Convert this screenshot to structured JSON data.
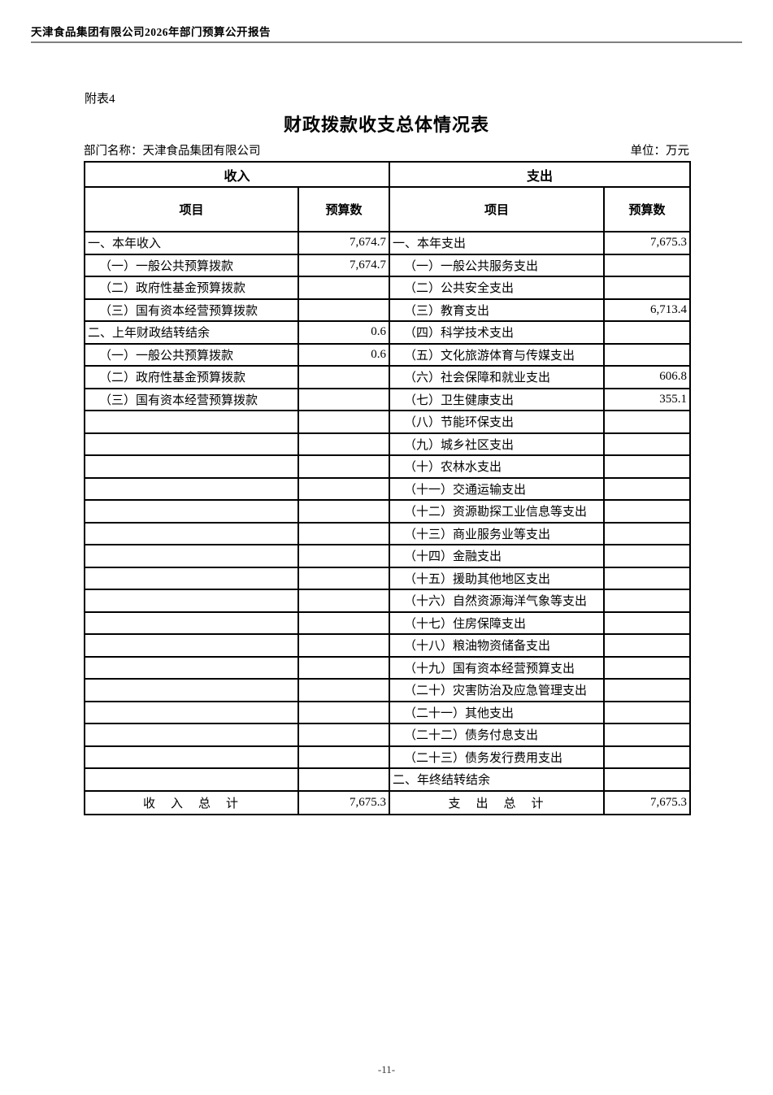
{
  "page": {
    "report_header": "天津食品集团有限公司2026年部门预算公开报告",
    "attachment_label": "附表4",
    "title": "财政拨款收支总体情况表",
    "department_label": "部门名称：天津食品集团有限公司",
    "unit_label": "单位：万元",
    "page_number": "-11-"
  },
  "table": {
    "income_header": "收入",
    "expense_header": "支出",
    "item_header": "项目",
    "budget_header": "预算数",
    "rows": [
      {
        "income_item": "一、本年收入",
        "income_value": "7,674.7",
        "expense_item": "一、本年支出",
        "expense_value": "7,675.3"
      },
      {
        "income_item": "（一）一般公共预算拨款",
        "income_value": "7,674.7",
        "expense_item": "（一）一般公共服务支出",
        "expense_value": ""
      },
      {
        "income_item": "（二）政府性基金预算拨款",
        "income_value": "",
        "expense_item": "（二）公共安全支出",
        "expense_value": ""
      },
      {
        "income_item": "（三）国有资本经营预算拨款",
        "income_value": "",
        "expense_item": "（三）教育支出",
        "expense_value": "6,713.4"
      },
      {
        "income_item": "二、上年财政结转结余",
        "income_value": "0.6",
        "expense_item": "（四）科学技术支出",
        "expense_value": ""
      },
      {
        "income_item": "（一）一般公共预算拨款",
        "income_value": "0.6",
        "expense_item": "（五）文化旅游体育与传媒支出",
        "expense_value": ""
      },
      {
        "income_item": "（二）政府性基金预算拨款",
        "income_value": "",
        "expense_item": "（六）社会保障和就业支出",
        "expense_value": "606.8"
      },
      {
        "income_item": "（三）国有资本经营预算拨款",
        "income_value": "",
        "expense_item": "（七）卫生健康支出",
        "expense_value": "355.1"
      },
      {
        "income_item": "",
        "income_value": "",
        "expense_item": "（八）节能环保支出",
        "expense_value": ""
      },
      {
        "income_item": "",
        "income_value": "",
        "expense_item": "（九）城乡社区支出",
        "expense_value": ""
      },
      {
        "income_item": "",
        "income_value": "",
        "expense_item": "（十）农林水支出",
        "expense_value": ""
      },
      {
        "income_item": "",
        "income_value": "",
        "expense_item": "（十一）交通运输支出",
        "expense_value": ""
      },
      {
        "income_item": "",
        "income_value": "",
        "expense_item": "（十二）资源勘探工业信息等支出",
        "expense_value": ""
      },
      {
        "income_item": "",
        "income_value": "",
        "expense_item": "（十三）商业服务业等支出",
        "expense_value": ""
      },
      {
        "income_item": "",
        "income_value": "",
        "expense_item": "（十四）金融支出",
        "expense_value": ""
      },
      {
        "income_item": "",
        "income_value": "",
        "expense_item": "（十五）援助其他地区支出",
        "expense_value": ""
      },
      {
        "income_item": "",
        "income_value": "",
        "expense_item": "（十六）自然资源海洋气象等支出",
        "expense_value": ""
      },
      {
        "income_item": "",
        "income_value": "",
        "expense_item": "（十七）住房保障支出",
        "expense_value": ""
      },
      {
        "income_item": "",
        "income_value": "",
        "expense_item": "（十八）粮油物资储备支出",
        "expense_value": ""
      },
      {
        "income_item": "",
        "income_value": "",
        "expense_item": "（十九）国有资本经营预算支出",
        "expense_value": ""
      },
      {
        "income_item": "",
        "income_value": "",
        "expense_item": "（二十）灾害防治及应急管理支出",
        "expense_value": ""
      },
      {
        "income_item": "",
        "income_value": "",
        "expense_item": "（二十一）其他支出",
        "expense_value": ""
      },
      {
        "income_item": "",
        "income_value": "",
        "expense_item": "（二十二）债务付息支出",
        "expense_value": ""
      },
      {
        "income_item": "",
        "income_value": "",
        "expense_item": "（二十三）债务发行费用支出",
        "expense_value": ""
      },
      {
        "income_item": "",
        "income_value": "",
        "expense_item": "二、年终结转结余",
        "expense_value": ""
      }
    ],
    "total_row": {
      "income_label": "收　入　总　计",
      "income_value": "7,675.3",
      "expense_label": "支　出　总　计",
      "expense_value": "7,675.3"
    }
  }
}
